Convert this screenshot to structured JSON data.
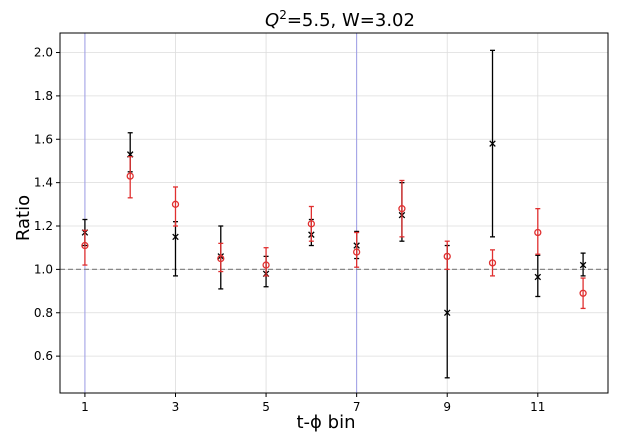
{
  "chart_data": {
    "type": "scatter",
    "title_prefix": "Q",
    "title_sup": "2",
    "title_rest": "=5.5, W=3.02",
    "xlabel": "t-ϕ bin",
    "ylabel": "Ratio",
    "xlim": [
      0.45,
      12.55
    ],
    "ylim": [
      0.43,
      2.09
    ],
    "x_ticks": [
      1,
      3,
      5,
      7,
      9,
      11
    ],
    "x_tick_labels": [
      "1",
      "3",
      "5",
      "7",
      "9",
      "11"
    ],
    "y_ticks": [
      0.6,
      0.8,
      1.0,
      1.2,
      1.4,
      1.6,
      1.8,
      2.0
    ],
    "y_tick_labels": [
      "0.6",
      "0.8",
      "1.0",
      "1.2",
      "1.4",
      "1.6",
      "1.8",
      "2.0"
    ],
    "grid": true,
    "reference_line": {
      "y": 1.0,
      "style": "dashed",
      "color": "#888888"
    },
    "vertical_lines": [
      {
        "x": 1,
        "color": "#9b9be6"
      },
      {
        "x": 7,
        "color": "#9b9be6"
      }
    ],
    "series": [
      {
        "color": "#000000",
        "marker": "x",
        "x": [
          1,
          2,
          3,
          4,
          5,
          6,
          7,
          8,
          9,
          10,
          11,
          12
        ],
        "y": [
          1.17,
          1.53,
          1.15,
          1.06,
          0.98,
          1.16,
          1.11,
          1.25,
          0.8,
          1.58,
          0.965,
          1.02
        ],
        "err_low": [
          0.06,
          0.08,
          0.18,
          0.15,
          0.06,
          0.05,
          0.06,
          0.12,
          0.3,
          0.43,
          0.09,
          0.05
        ],
        "err_high": [
          0.06,
          0.1,
          0.07,
          0.14,
          0.08,
          0.07,
          0.065,
          0.15,
          0.31,
          0.43,
          0.1,
          0.055
        ]
      },
      {
        "color": "#e03030",
        "marker": "o",
        "x": [
          1,
          2,
          3,
          4,
          5,
          6,
          7,
          8,
          9,
          10,
          11,
          12
        ],
        "y": [
          1.11,
          1.43,
          1.3,
          1.05,
          1.02,
          1.21,
          1.08,
          1.28,
          1.06,
          1.03,
          1.17,
          0.89
        ],
        "err_low": [
          0.09,
          0.1,
          0.1,
          0.06,
          0.05,
          0.08,
          0.07,
          0.13,
          0.06,
          0.06,
          0.1,
          0.07
        ],
        "err_high": [
          0.07,
          0.09,
          0.08,
          0.07,
          0.08,
          0.08,
          0.09,
          0.13,
          0.07,
          0.06,
          0.11,
          0.07
        ]
      }
    ]
  }
}
